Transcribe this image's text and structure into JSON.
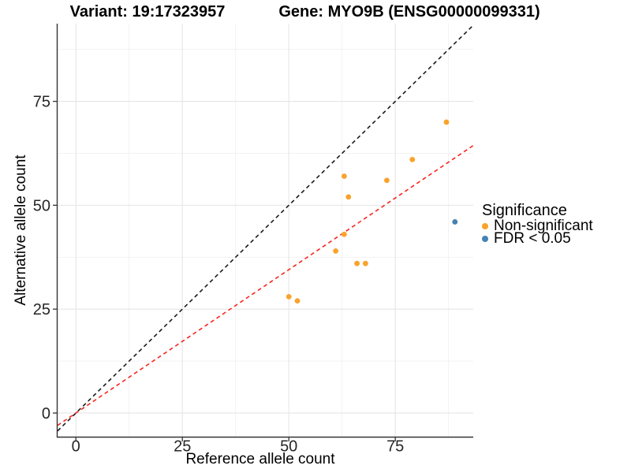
{
  "chart_data": {
    "type": "scatter",
    "title_left": "Variant: 19:17323957",
    "title_right": "Gene: MYO9B (ENSG00000099331)",
    "xlabel": "Reference allele count",
    "ylabel": "Alternative allele count",
    "xlim": [
      -4.3,
      93.3
    ],
    "ylim": [
      -5.7,
      93.7
    ],
    "xticks": [
      0,
      25,
      50,
      75
    ],
    "yticks": [
      0,
      25,
      50,
      75
    ],
    "xticks_minor": [
      12.5,
      37.5,
      62.5,
      87.5
    ],
    "yticks_minor": [
      12.5,
      37.5,
      62.5,
      87.5
    ],
    "grid": true,
    "legend": {
      "title": "Significance",
      "position": "right"
    },
    "series": [
      {
        "name": "Non-significant",
        "color": "#F9A32B",
        "points": [
          [
            50,
            28
          ],
          [
            52,
            27
          ],
          [
            61,
            39
          ],
          [
            63,
            43
          ],
          [
            63,
            57
          ],
          [
            64,
            52
          ],
          [
            66,
            36
          ],
          [
            68,
            36
          ],
          [
            73,
            56
          ],
          [
            79,
            61
          ],
          [
            87,
            70
          ]
        ]
      },
      {
        "name": "FDR < 0.05",
        "color": "#4682B4",
        "points": [
          [
            89,
            46
          ]
        ]
      }
    ],
    "lines": [
      {
        "name": "identity-line",
        "slope": 1,
        "intercept": 0,
        "color": "#1A1A1A",
        "style": "dashed"
      },
      {
        "name": "trend-line",
        "slope": 0.69,
        "intercept": 0,
        "color": "#F8251D",
        "style": "dashed"
      }
    ],
    "style_colors": {
      "grid_major": "#E5E5E5",
      "grid_minor": "#F1F1F1",
      "axis_line": "#333333",
      "tick_text": "#262626"
    }
  }
}
